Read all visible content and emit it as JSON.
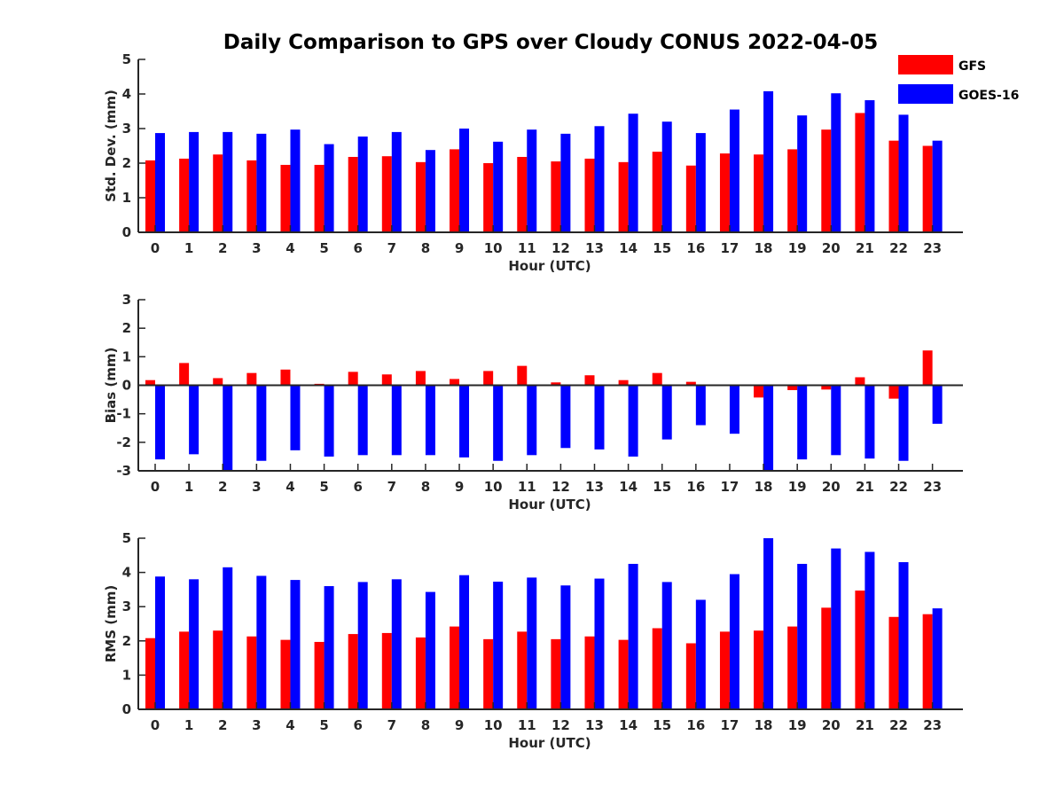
{
  "chart_data": {
    "type": "bar",
    "title": "Daily Comparison to GPS over Cloudy CONUS 2022-04-05",
    "legend": {
      "placement": "top-right",
      "entries": [
        {
          "name": "GFS",
          "color": "#ff0000"
        },
        {
          "name": "GOES-16",
          "color": "#0000ff"
        }
      ]
    },
    "categories": [
      "0",
      "1",
      "2",
      "3",
      "4",
      "5",
      "6",
      "7",
      "8",
      "9",
      "10",
      "11",
      "12",
      "13",
      "14",
      "15",
      "16",
      "17",
      "18",
      "19",
      "20",
      "21",
      "22",
      "23"
    ],
    "panels": [
      {
        "ylabel": "Std. Dev. (mm)",
        "xlabel": "Hour (UTC)",
        "ylim": [
          0,
          5
        ],
        "yticks": [
          "0",
          "1",
          "2",
          "3",
          "4",
          "5"
        ],
        "series": [
          {
            "name": "GFS",
            "values": [
              2.08,
              2.13,
              2.25,
              2.08,
              1.95,
              1.95,
              2.18,
              2.2,
              2.03,
              2.4,
              2.0,
              2.18,
              2.05,
              2.13,
              2.03,
              2.33,
              1.93,
              2.28,
              2.25,
              2.4,
              2.97,
              3.45,
              2.65,
              2.5
            ]
          },
          {
            "name": "GOES-16",
            "values": [
              2.87,
              2.9,
              2.9,
              2.85,
              2.97,
              2.55,
              2.77,
              2.9,
              2.38,
              3.0,
              2.62,
              2.97,
              2.85,
              3.07,
              3.43,
              3.2,
              2.87,
              3.55,
              4.08,
              3.38,
              4.02,
              3.82,
              3.4,
              2.65
            ]
          }
        ]
      },
      {
        "ylabel": "Bias (mm)",
        "xlabel": "Hour (UTC)",
        "ylim": [
          -3,
          3
        ],
        "yticks": [
          "-3",
          "-2",
          "-1",
          "0",
          "1",
          "2",
          "3"
        ],
        "series": [
          {
            "name": "GFS",
            "values": [
              0.18,
              0.78,
              0.25,
              0.43,
              0.55,
              0.05,
              0.47,
              0.38,
              0.5,
              0.22,
              0.5,
              0.68,
              0.1,
              0.35,
              0.18,
              0.43,
              0.12,
              0.0,
              -0.43,
              -0.17,
              -0.15,
              0.28,
              -0.47,
              1.22
            ]
          },
          {
            "name": "GOES-16",
            "values": [
              -2.6,
              -2.42,
              -3.0,
              -2.65,
              -2.28,
              -2.5,
              -2.45,
              -2.45,
              -2.45,
              -2.53,
              -2.65,
              -2.45,
              -2.2,
              -2.25,
              -2.5,
              -1.9,
              -1.4,
              -1.7,
              -3.0,
              -2.6,
              -2.45,
              -2.57,
              -2.65,
              -1.35
            ]
          }
        ]
      },
      {
        "ylabel": "RMS (mm)",
        "xlabel": "Hour (UTC)",
        "ylim": [
          0,
          5
        ],
        "yticks": [
          "0",
          "1",
          "2",
          "3",
          "4",
          "5"
        ],
        "series": [
          {
            "name": "GFS",
            "values": [
              2.08,
              2.27,
              2.3,
              2.13,
              2.03,
              1.97,
              2.2,
              2.23,
              2.1,
              2.42,
              2.05,
              2.27,
              2.05,
              2.13,
              2.03,
              2.37,
              1.93,
              2.27,
              2.3,
              2.42,
              2.97,
              3.47,
              2.7,
              2.78
            ]
          },
          {
            "name": "GOES-16",
            "values": [
              3.88,
              3.8,
              4.15,
              3.9,
              3.78,
              3.6,
              3.72,
              3.8,
              3.43,
              3.92,
              3.73,
              3.85,
              3.62,
              3.82,
              4.25,
              3.72,
              3.2,
              3.95,
              5.0,
              4.25,
              4.7,
              4.6,
              4.3,
              2.95
            ]
          }
        ]
      }
    ]
  }
}
